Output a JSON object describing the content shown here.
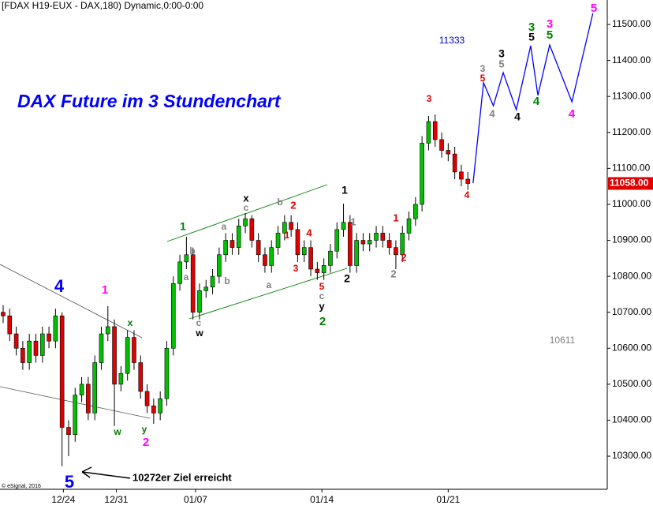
{
  "chart_data": {
    "type": "candlestick",
    "header": "[FDAX H19-EUX - DAX,180) Dynamic,0:00-0:00",
    "title": "DAX Future im 3 Stundenchart",
    "copyright": "© eSignal, 2016",
    "note": "10272er Ziel erreicht",
    "up_color": "#00c000",
    "down_color": "#e00000",
    "open": [
      10700,
      10690,
      10640,
      10600,
      10560,
      10620,
      10580,
      10640,
      10620,
      10690,
      10380,
      10360,
      10470,
      10500,
      10420,
      10560,
      10640,
      10660,
      10500,
      10530,
      10630,
      10560,
      10480,
      10440,
      10420,
      10460,
      10600,
      10780,
      10840,
      10860,
      10700,
      10760,
      10770,
      10800,
      10860,
      10900,
      10880,
      10940,
      10960,
      10900,
      10860,
      10830,
      10880,
      10920,
      10950,
      10930,
      10860,
      10880,
      10820,
      10810,
      10830,
      10870,
      10930,
      10950,
      10830,
      10900,
      10890,
      10900,
      10920,
      10900,
      10880,
      10860,
      10920,
      10960,
      11000,
      11170,
      11230,
      11180,
      11150,
      11140,
      11090,
      11070
    ],
    "high": [
      10720,
      10710,
      10660,
      10620,
      10640,
      10640,
      10660,
      10660,
      10710,
      10700,
      10400,
      10490,
      10520,
      10520,
      10580,
      10660,
      10717,
      10680,
      10550,
      10650,
      10650,
      10580,
      10500,
      10460,
      10480,
      10620,
      10800,
      10860,
      10910,
      10880,
      10780,
      10790,
      10820,
      10880,
      10920,
      10920,
      10960,
      10976,
      10970,
      10920,
      10880,
      10900,
      10940,
      10970,
      10970,
      10950,
      10900,
      10900,
      10840,
      10850,
      10890,
      10950,
      11002,
      10970,
      10920,
      10920,
      10920,
      10940,
      10940,
      10920,
      10900,
      10940,
      10980,
      11020,
      11190,
      11246,
      11250,
      11200,
      11170,
      11160,
      11110,
      11090
    ],
    "low": [
      10670,
      10620,
      10580,
      10540,
      10540,
      10560,
      10560,
      10600,
      10600,
      10272,
      10300,
      10340,
      10450,
      10400,
      10400,
      10540,
      10620,
      10384,
      10480,
      10510,
      10540,
      10460,
      10420,
      10390,
      10400,
      10440,
      10580,
      10760,
      10820,
      10680,
      10680,
      10740,
      10750,
      10780,
      10840,
      10860,
      10860,
      10920,
      10880,
      10840,
      10810,
      10810,
      10860,
      10900,
      10910,
      10840,
      10840,
      10800,
      10790,
      10790,
      10810,
      10850,
      10910,
      10810,
      10810,
      10870,
      10870,
      10880,
      10880,
      10860,
      10820,
      10840,
      10900,
      10940,
      10980,
      11150,
      11160,
      11130,
      11120,
      11070,
      11050,
      11040
    ],
    "close": [
      10690,
      10640,
      10600,
      10560,
      10620,
      10580,
      10640,
      10620,
      10690,
      10380,
      10360,
      10470,
      10500,
      10420,
      10560,
      10640,
      10660,
      10500,
      10530,
      10630,
      10560,
      10480,
      10440,
      10420,
      10460,
      10600,
      10780,
      10840,
      10860,
      10700,
      10760,
      10770,
      10800,
      10860,
      10900,
      10880,
      10940,
      10960,
      10900,
      10860,
      10830,
      10880,
      10920,
      10950,
      10930,
      10860,
      10880,
      10820,
      10810,
      10830,
      10870,
      10930,
      10950,
      10830,
      10900,
      10890,
      10900,
      10920,
      10900,
      10880,
      10860,
      10920,
      10960,
      11000,
      11170,
      11230,
      11180,
      11150,
      11140,
      11090,
      11070,
      11058
    ],
    "forecast": {
      "color": "#0000ff",
      "x": [
        71.8,
        73.4,
        74.9,
        76.4,
        78.4,
        80.6,
        81.7,
        83.5,
        86.9,
        90.1
      ],
      "values": [
        11059,
        11338,
        11274,
        11366,
        11263,
        11441,
        11303,
        11443,
        11285,
        11531
      ]
    },
    "last_price": {
      "value": 11058,
      "label": "11058.00"
    },
    "xlim": [
      -0.48,
      92.3
    ],
    "ylim": [
      10208,
      11568
    ],
    "xticks": [
      {
        "value": 9.2,
        "label": "12/24"
      },
      {
        "value": 17.3,
        "label": "12/31"
      },
      {
        "value": 29.4,
        "label": "01/07"
      },
      {
        "value": 48.7,
        "label": "01/14"
      },
      {
        "value": 68,
        "label": "01/21"
      }
    ],
    "yticks": [
      {
        "value": 10300,
        "label": "10300.00"
      },
      {
        "value": 10400,
        "label": "10400.00"
      },
      {
        "value": 10500,
        "label": "10500.00"
      },
      {
        "value": 10600,
        "label": "10600.00"
      },
      {
        "value": 10700,
        "label": "10700.00"
      },
      {
        "value": 10800,
        "label": "10800.00"
      },
      {
        "value": 10900,
        "label": "10900.00"
      },
      {
        "value": 11000,
        "label": "11000.00"
      },
      {
        "value": 11100,
        "label": "11100.00"
      },
      {
        "value": 11200,
        "label": "11200.00"
      },
      {
        "value": 11300,
        "label": "11300.00"
      },
      {
        "value": 11400,
        "label": "11400.00"
      },
      {
        "value": 11500,
        "label": "11500.00"
      }
    ],
    "annotations": [
      {
        "text": "4",
        "color": "#0000ff"
      },
      {
        "text": "5",
        "color": "#0000ff"
      },
      {
        "text": "1",
        "color": "#ff00ff"
      },
      {
        "text": "x",
        "color": "#008000"
      },
      {
        "text": "w",
        "color": "#008000"
      },
      {
        "text": "y",
        "color": "#008000"
      },
      {
        "text": "2",
        "color": "#ff00ff"
      },
      {
        "text": "1",
        "color": "#008000"
      },
      {
        "text": "b",
        "color": "#808080"
      },
      {
        "text": "a",
        "color": "#808080"
      },
      {
        "text": "c",
        "color": "#808080"
      },
      {
        "text": "w",
        "color": "#000000"
      },
      {
        "text": "a",
        "color": "#808080"
      },
      {
        "text": "b",
        "color": "#808080"
      },
      {
        "text": "x",
        "color": "#000000"
      },
      {
        "text": "c",
        "color": "#808080"
      },
      {
        "text": "a",
        "color": "#808080"
      },
      {
        "text": "b",
        "color": "#808080"
      },
      {
        "text": "2",
        "color": "#e00000"
      },
      {
        "text": "1",
        "color": "#e00000"
      },
      {
        "text": "4",
        "color": "#e00000"
      },
      {
        "text": "3",
        "color": "#e00000"
      },
      {
        "text": "5",
        "color": "#e00000"
      },
      {
        "text": "c",
        "color": "#808080"
      },
      {
        "text": "y",
        "color": "#000000"
      },
      {
        "text": "2",
        "color": "#008000"
      },
      {
        "text": "1",
        "color": "#000000"
      },
      {
        "text": "1",
        "color": "#808080"
      },
      {
        "text": "2",
        "color": "#000000"
      },
      {
        "text": "1",
        "color": "#e00000"
      },
      {
        "text": "2",
        "color": "#e00000"
      },
      {
        "text": "2",
        "color": "#808080"
      },
      {
        "text": "3",
        "color": "#e00000"
      },
      {
        "text": "4",
        "color": "#e00000"
      },
      {
        "text": "3",
        "color": "#808080"
      },
      {
        "text": "5",
        "color": "#e00000"
      },
      {
        "text": "4",
        "color": "#808080"
      },
      {
        "text": "3",
        "color": "#000000"
      },
      {
        "text": "5",
        "color": "#808080"
      },
      {
        "text": "4",
        "color": "#000000"
      },
      {
        "text": "3",
        "color": "#008000"
      },
      {
        "text": "5",
        "color": "#000000"
      },
      {
        "text": "4",
        "color": "#008000"
      },
      {
        "text": "3",
        "color": "#ff00ff"
      },
      {
        "text": "5",
        "color": "#008000"
      },
      {
        "text": "4",
        "color": "#ff00ff"
      },
      {
        "text": "5",
        "color": "#ff00ff"
      },
      {
        "text": "11333",
        "color": "#0000cc"
      },
      {
        "text": "10611",
        "color": "#808080"
      }
    ]
  }
}
